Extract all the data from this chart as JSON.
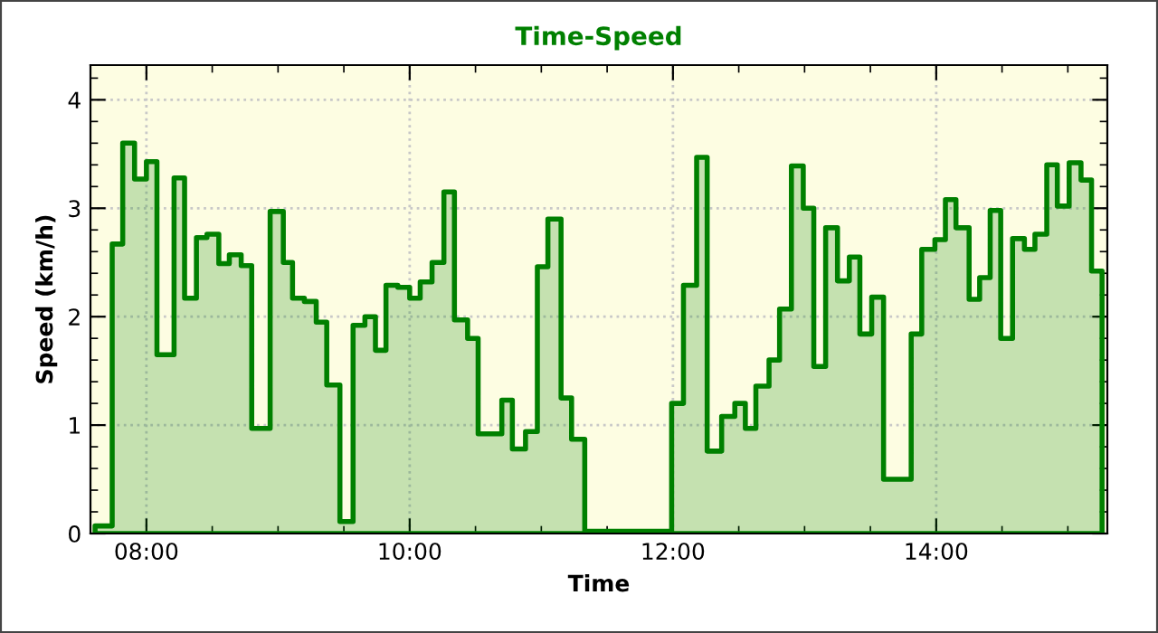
{
  "chart_data": {
    "type": "area",
    "title": "Time-Speed",
    "xlabel": "Time",
    "ylabel": "Speed (km/h)",
    "x": [
      7.61,
      7.74,
      7.74,
      7.82,
      7.82,
      7.91,
      7.91,
      8.0,
      8.0,
      8.08,
      8.08,
      8.21,
      8.21,
      8.29,
      8.29,
      8.38,
      8.38,
      8.46,
      8.46,
      8.55,
      8.55,
      8.63,
      8.63,
      8.72,
      8.72,
      8.8,
      8.8,
      8.94,
      8.94,
      9.04,
      9.04,
      9.11,
      9.11,
      9.2,
      9.2,
      9.29,
      9.29,
      9.37,
      9.37,
      9.47,
      9.47,
      9.57,
      9.57,
      9.66,
      9.66,
      9.74,
      9.74,
      9.82,
      9.82,
      9.91,
      9.91,
      10.0,
      10.0,
      10.08,
      10.08,
      10.17,
      10.17,
      10.26,
      10.26,
      10.34,
      10.34,
      10.44,
      10.44,
      10.52,
      10.52,
      10.7,
      10.7,
      10.78,
      10.78,
      10.88,
      10.88,
      10.97,
      10.97,
      11.05,
      11.05,
      11.15,
      11.15,
      11.23,
      11.23,
      11.33,
      11.33,
      11.99,
      11.99,
      12.08,
      12.08,
      12.18,
      12.18,
      12.26,
      12.26,
      12.37,
      12.37,
      12.47,
      12.47,
      12.55,
      12.55,
      12.63,
      12.63,
      12.73,
      12.73,
      12.81,
      12.81,
      12.9,
      12.9,
      12.99,
      12.99,
      13.07,
      13.07,
      13.16,
      13.16,
      13.25,
      13.25,
      13.34,
      13.34,
      13.42,
      13.42,
      13.51,
      13.51,
      13.6,
      13.6,
      13.81,
      13.81,
      13.89,
      13.89,
      13.99,
      13.99,
      14.07,
      14.07,
      14.15,
      14.15,
      14.25,
      14.25,
      14.33,
      14.33,
      14.41,
      14.41,
      14.49,
      14.49,
      14.58,
      14.58,
      14.67,
      14.67,
      14.75,
      14.75,
      14.84,
      14.84,
      14.92,
      14.92,
      15.01,
      15.01,
      15.1,
      15.1,
      15.18,
      15.18,
      15.26
    ],
    "series": [
      {
        "color": "#008000",
        "values": [
          0.07,
          0.07,
          2.67,
          2.67,
          3.6,
          3.6,
          3.27,
          3.27,
          3.43,
          3.43,
          1.65,
          1.65,
          3.28,
          3.28,
          2.17,
          2.17,
          2.73,
          2.73,
          2.76,
          2.76,
          2.49,
          2.49,
          2.57,
          2.57,
          2.47,
          2.47,
          0.97,
          0.97,
          2.97,
          2.97,
          2.5,
          2.5,
          2.17,
          2.17,
          2.14,
          2.14,
          1.95,
          1.95,
          1.37,
          1.37,
          0.11,
          0.11,
          1.92,
          1.92,
          2.0,
          2.0,
          1.69,
          1.69,
          2.29,
          2.29,
          2.27,
          2.27,
          2.17,
          2.17,
          2.32,
          2.32,
          2.5,
          2.5,
          3.15,
          3.15,
          1.97,
          1.97,
          1.8,
          1.8,
          0.92,
          0.92,
          1.23,
          1.23,
          0.78,
          0.78,
          0.94,
          0.94,
          2.46,
          2.46,
          2.9,
          2.9,
          1.25,
          1.25,
          0.87,
          0.87,
          0.02,
          0.02,
          1.2,
          1.2,
          2.29,
          2.29,
          3.47,
          3.47,
          0.76,
          0.76,
          1.08,
          1.08,
          1.2,
          1.2,
          0.97,
          0.97,
          1.36,
          1.36,
          1.6,
          1.6,
          2.07,
          2.07,
          3.39,
          3.39,
          3.0,
          3.0,
          1.54,
          1.54,
          2.82,
          2.82,
          2.33,
          2.33,
          2.55,
          2.55,
          1.84,
          1.84,
          2.18,
          2.18,
          0.5,
          0.5,
          1.84,
          1.84,
          2.62,
          2.62,
          2.71,
          2.71,
          3.08,
          3.08,
          2.82,
          2.82,
          2.16,
          2.16,
          2.36,
          2.36,
          2.98,
          2.98,
          1.8,
          1.8,
          2.72,
          2.72,
          2.62,
          2.62,
          2.76,
          2.76,
          3.4,
          3.4,
          3.02,
          3.02,
          3.42,
          3.42,
          3.26,
          3.26,
          2.42,
          2.42
        ]
      }
    ],
    "xlim": [
      7.575,
      15.3
    ],
    "xticks": [
      {
        "value": 8,
        "label": "08:00"
      },
      {
        "value": 10,
        "label": "10:00"
      },
      {
        "value": 12,
        "label": "12:00"
      },
      {
        "value": 14,
        "label": "14:00"
      }
    ],
    "ylim": [
      0,
      4.32
    ],
    "yticks": [
      0,
      1,
      2,
      3,
      4
    ],
    "grid": true
  }
}
